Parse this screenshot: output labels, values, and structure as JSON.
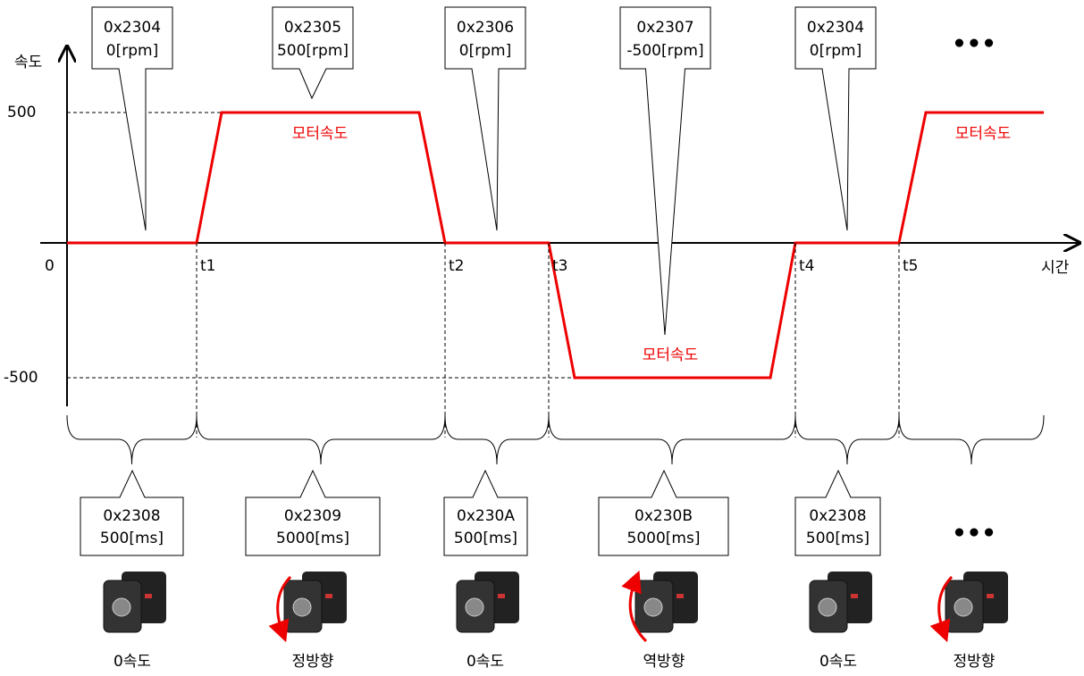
{
  "axes": {
    "y_label": "속도",
    "x_label": "시간",
    "origin": "0",
    "y_ticks": [
      "500",
      "-500"
    ],
    "time_marks": [
      "t1",
      "t2",
      "t3",
      "t4",
      "t5"
    ]
  },
  "top_callouts": [
    {
      "lines": [
        "0x2304",
        "0[rpm]"
      ]
    },
    {
      "lines": [
        "0x2305",
        "500[rpm]"
      ]
    },
    {
      "lines": [
        "0x2306",
        "0[rpm]"
      ]
    },
    {
      "lines": [
        "0x2307",
        "-500[rpm]"
      ]
    },
    {
      "lines": [
        "0x2304",
        "0[rpm]"
      ]
    }
  ],
  "curve_labels": [
    "모터속도",
    "모터속도",
    "모터속도"
  ],
  "ellipsis": [
    "•••",
    "•••"
  ],
  "bottom_callouts": [
    {
      "lines": [
        "0x2308",
        "500[ms]"
      ]
    },
    {
      "lines": [
        "0x2309",
        "5000[ms]"
      ]
    },
    {
      "lines": [
        "0x230A",
        "500[ms]"
      ]
    },
    {
      "lines": [
        "0x230B",
        "5000[ms]"
      ]
    },
    {
      "lines": [
        "0x2308",
        "500[ms]"
      ]
    }
  ],
  "motor_labels": [
    "0속도",
    "정방향",
    "0속도",
    "역방향",
    "0속도",
    "정방향"
  ]
}
